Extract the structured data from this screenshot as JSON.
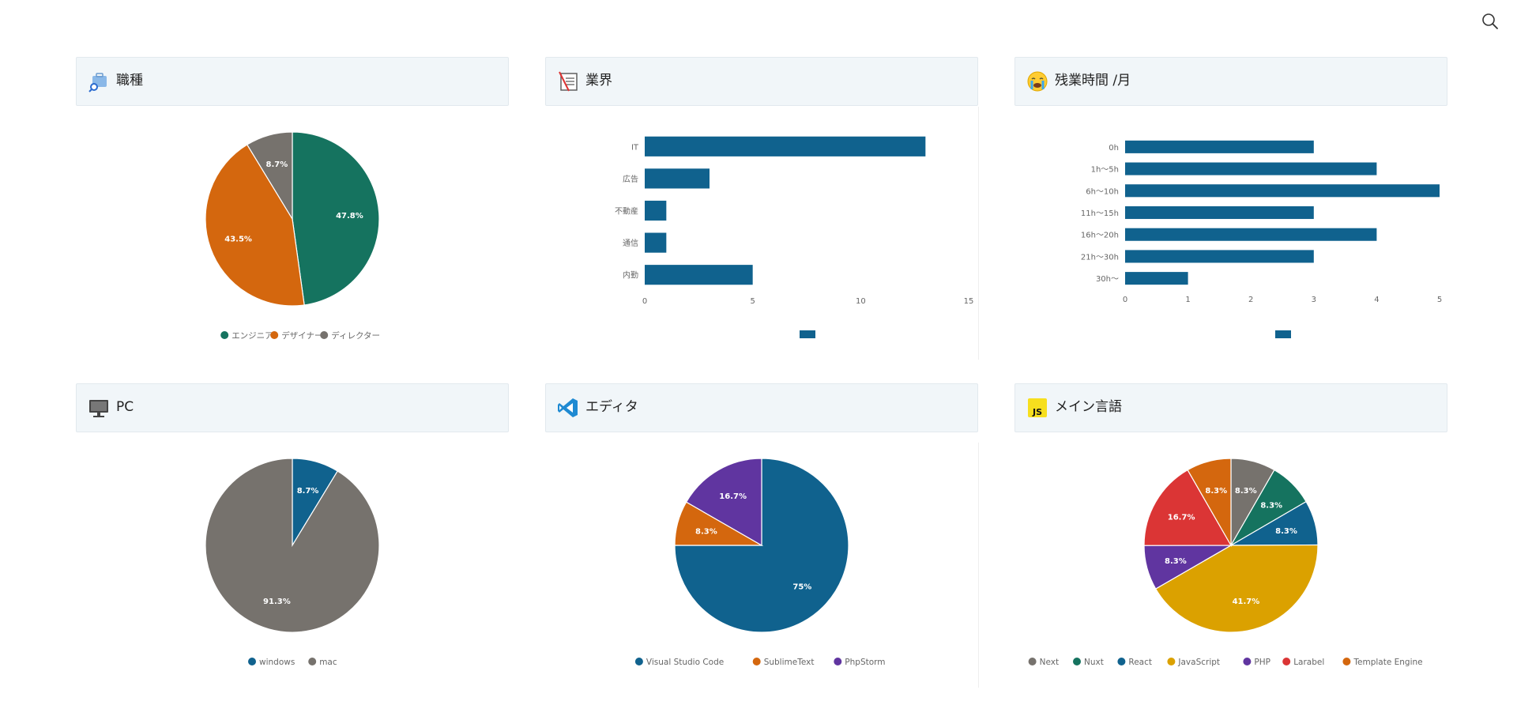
{
  "colors": {
    "teal": "#15735f",
    "orange": "#d4670e",
    "gray": "#76726d",
    "blue": "#10628e",
    "purple": "#6035a0",
    "red": "#db3535",
    "yellow": "#dba100"
  },
  "panels": {
    "job": {
      "title": "職種",
      "icon": "briefcase-search-icon"
    },
    "industry": {
      "title": "業界",
      "icon": "notebook-icon"
    },
    "overtime": {
      "title": "残業時間 /月",
      "icon": "crying-face-icon"
    },
    "pc": {
      "title": "PC",
      "icon": "monitor-icon"
    },
    "editor": {
      "title": "エディタ",
      "icon": "vscode-icon"
    },
    "language": {
      "title": "メイン言語",
      "icon": "js-icon"
    }
  },
  "chart_data": [
    {
      "id": "job",
      "type": "pie",
      "labels": [
        "エンジニア",
        "デザイナー",
        "ディレクター"
      ],
      "values": [
        47.8,
        43.5,
        8.7
      ],
      "value_labels": [
        "47.8%",
        "43.5%",
        "8.7%"
      ],
      "colors": [
        "#15735f",
        "#d4670e",
        "#76726d"
      ]
    },
    {
      "id": "industry",
      "type": "bar",
      "orientation": "horizontal",
      "categories": [
        "IT",
        "広告",
        "不動産",
        "通信",
        "内勤"
      ],
      "values": [
        13,
        3,
        1,
        1,
        5
      ],
      "xlim": [
        0,
        15
      ],
      "xticks": [
        "0",
        "5",
        "10",
        "15"
      ],
      "legend_color": "#10628e"
    },
    {
      "id": "overtime",
      "type": "bar",
      "orientation": "horizontal",
      "categories": [
        "0h",
        "1h〜5h",
        "6h〜10h",
        "11h〜15h",
        "16h〜20h",
        "21h〜30h",
        "30h〜"
      ],
      "values": [
        3,
        4,
        5,
        3,
        4,
        3,
        1
      ],
      "xlim": [
        0,
        5
      ],
      "xticks": [
        "0",
        "1",
        "2",
        "3",
        "4",
        "5"
      ],
      "legend_color": "#10628e"
    },
    {
      "id": "pc",
      "type": "pie",
      "labels": [
        "windows",
        "mac"
      ],
      "values": [
        8.7,
        91.3
      ],
      "value_labels": [
        "8.7%",
        "91.3%"
      ],
      "colors": [
        "#10628e",
        "#76726d"
      ]
    },
    {
      "id": "editor",
      "type": "pie",
      "labels": [
        "Visual Studio Code",
        "SublimeText",
        "PhpStorm"
      ],
      "values": [
        75,
        8.3,
        16.7
      ],
      "value_labels": [
        "75%",
        "8.3%",
        "16.7%"
      ],
      "colors": [
        "#10628e",
        "#d4670e",
        "#6035a0"
      ]
    },
    {
      "id": "language",
      "type": "pie",
      "labels": [
        "Next",
        "Nuxt",
        "React",
        "JavaScript",
        "PHP",
        "Larabel",
        "Template Engine"
      ],
      "values": [
        8.3,
        8.3,
        8.3,
        41.7,
        8.3,
        16.7,
        8.3
      ],
      "value_labels": [
        "8.3%",
        "8.3%",
        "8.3%",
        "41.7%",
        "8.3%",
        "16.7%",
        "8.3%"
      ],
      "colors": [
        "#76726d",
        "#15735f",
        "#10628e",
        "#dba100",
        "#6035a0",
        "#db3535",
        "#d4670e"
      ]
    }
  ]
}
